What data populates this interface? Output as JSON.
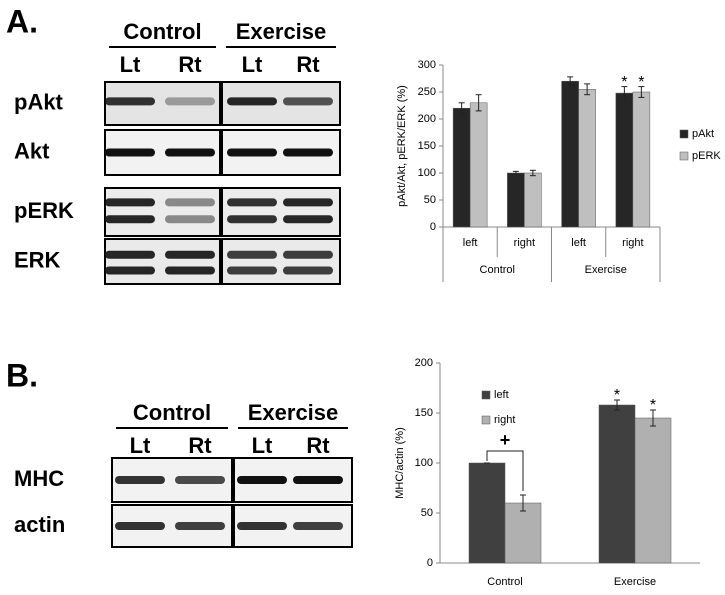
{
  "blots": {
    "A": {
      "panel": "A.",
      "groups": [
        "Control",
        "Exercise"
      ],
      "lanes": [
        "Lt",
        "Rt",
        "Lt",
        "Rt"
      ],
      "rows": [
        "pAkt",
        "Akt",
        "pERK",
        "ERK"
      ]
    },
    "B": {
      "panel": "B.",
      "groups": [
        "Control",
        "Exercise"
      ],
      "lanes": [
        "Lt",
        "Rt",
        "Lt",
        "Rt"
      ],
      "rows": [
        "MHC",
        "actin"
      ]
    }
  },
  "chart_data": [
    {
      "type": "bar",
      "ylabel": "pAkt/Akt, pERK/ERK (%)",
      "categories": [
        "left",
        "right",
        "left",
        "right"
      ],
      "group_labels": [
        "Control",
        "Exercise"
      ],
      "ylim": [
        0,
        300
      ],
      "yticks": [
        0,
        50,
        100,
        150,
        200,
        250,
        300
      ],
      "legend": "right",
      "series": [
        {
          "name": "pAkt",
          "color": "#262626",
          "values": [
            220,
            100,
            270,
            248
          ],
          "errors": [
            10,
            3,
            8,
            12
          ]
        },
        {
          "name": "pERK",
          "color": "#bfbfbf",
          "values": [
            230,
            100,
            255,
            250
          ],
          "errors": [
            15,
            5,
            10,
            10
          ]
        }
      ],
      "annotations": [
        {
          "text": "*",
          "series": 0,
          "category": 3
        },
        {
          "text": "*",
          "series": 1,
          "category": 3
        }
      ]
    },
    {
      "type": "bar",
      "ylabel": "MHC/actin (%)",
      "categories": [
        "Control",
        "Exercise"
      ],
      "ylim": [
        0,
        200
      ],
      "yticks": [
        0,
        50,
        100,
        150,
        200
      ],
      "legend": "upper left",
      "series": [
        {
          "name": "left",
          "color": "#404040",
          "values": [
            100,
            158
          ],
          "errors": [
            0,
            5
          ]
        },
        {
          "name": "right",
          "color": "#b0b0b0",
          "values": [
            60,
            145
          ],
          "errors": [
            8,
            8
          ]
        }
      ],
      "annotations": [
        {
          "text": "+",
          "category": 0,
          "bracket": true
        },
        {
          "text": "*",
          "series": 0,
          "category": 1
        },
        {
          "text": "*",
          "series": 1,
          "category": 1
        }
      ]
    }
  ]
}
